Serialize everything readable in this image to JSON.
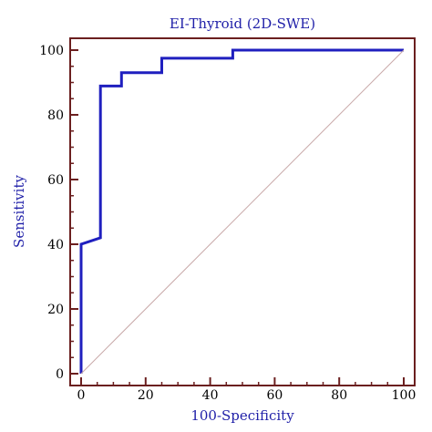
{
  "chart_data": {
    "type": "line",
    "title": "EI-Thyroid (2D-SWE)",
    "xlabel": "100-Specificity",
    "ylabel": "Sensitivity",
    "xlim": [
      0,
      100
    ],
    "ylim": [
      0,
      100
    ],
    "x_ticks": [
      0,
      20,
      40,
      60,
      80,
      100
    ],
    "y_ticks": [
      0,
      20,
      40,
      60,
      80,
      100
    ],
    "grid": false,
    "series": [
      {
        "type": "roc_curve",
        "color": "#1f1fbf",
        "points": [
          [
            0,
            0
          ],
          [
            0,
            40
          ],
          [
            6,
            42
          ],
          [
            6,
            88.9
          ],
          [
            12.5,
            88.9
          ],
          [
            12.5,
            93
          ],
          [
            25,
            93
          ],
          [
            25,
            97.5
          ],
          [
            47,
            97.5
          ],
          [
            47,
            100
          ],
          [
            100,
            100
          ]
        ]
      },
      {
        "type": "reference_diagonal",
        "color": "#c8a8a8",
        "points": [
          [
            0,
            0
          ],
          [
            100,
            100
          ]
        ]
      }
    ],
    "frame_color": "#6b1f1f",
    "tick_color": "#6b1f1f"
  }
}
